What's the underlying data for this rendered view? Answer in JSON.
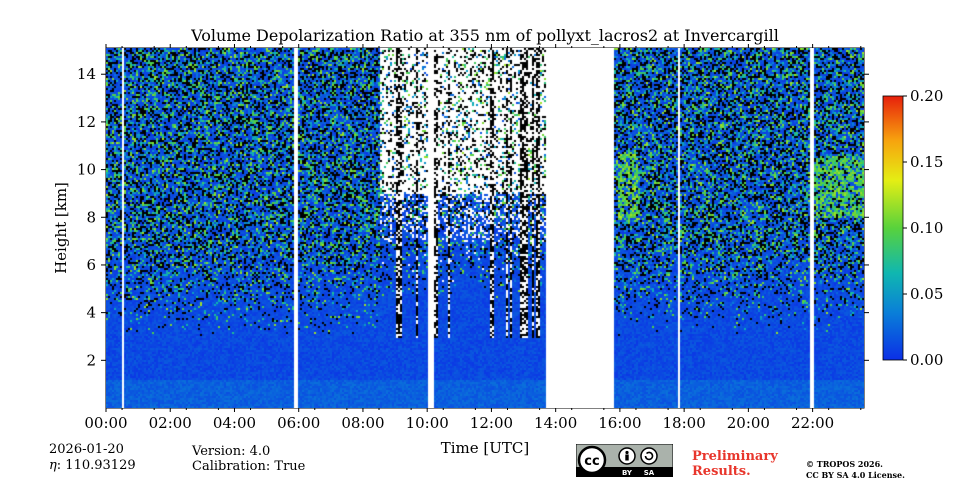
{
  "chart_data": {
    "type": "heatmap",
    "title": "Volume Depolarization Ratio at 355 nm of pollyxt_lacros2 at Invercargill",
    "xlabel": "Time [UTC]",
    "ylabel": "Height [km]",
    "xlim_hours": [
      0,
      23.6
    ],
    "ylim_km": [
      0,
      15.1
    ],
    "x_ticks": [
      {
        "hour": 0,
        "label": "00:00"
      },
      {
        "hour": 2,
        "label": "02:00"
      },
      {
        "hour": 4,
        "label": "04:00"
      },
      {
        "hour": 6,
        "label": "06:00"
      },
      {
        "hour": 8,
        "label": "08:00"
      },
      {
        "hour": 10,
        "label": "10:00"
      },
      {
        "hour": 12,
        "label": "12:00"
      },
      {
        "hour": 14,
        "label": "14:00"
      },
      {
        "hour": 16,
        "label": "16:00"
      },
      {
        "hour": 18,
        "label": "18:00"
      },
      {
        "hour": 20,
        "label": "20:00"
      },
      {
        "hour": 22,
        "label": "22:00"
      }
    ],
    "y_ticks": [
      {
        "km": 2,
        "label": "2"
      },
      {
        "km": 4,
        "label": "4"
      },
      {
        "km": 6,
        "label": "6"
      },
      {
        "km": 8,
        "label": "8"
      },
      {
        "km": 10,
        "label": "10"
      },
      {
        "km": 12,
        "label": "12"
      },
      {
        "km": 14,
        "label": "14"
      }
    ],
    "colorbar": {
      "min": 0.0,
      "max": 0.2,
      "ticks": [
        {
          "value": 0.0,
          "label": "0.00"
        },
        {
          "value": 0.05,
          "label": "0.05"
        },
        {
          "value": 0.1,
          "label": "0.10"
        },
        {
          "value": 0.15,
          "label": "0.15"
        },
        {
          "value": 0.2,
          "label": "0.20"
        }
      ]
    },
    "data_gaps_hours": [
      [
        0.45,
        0.5
      ],
      [
        5.85,
        5.92
      ],
      [
        10.0,
        10.15
      ],
      [
        13.65,
        15.8
      ],
      [
        17.8,
        17.85
      ],
      [
        21.9,
        22.0
      ]
    ],
    "signal_top_km": [
      {
        "from": 0.0,
        "to": 8.5,
        "km": 15.1
      },
      {
        "from": 8.5,
        "to": 13.65,
        "km": 15.1,
        "note": "mostly noise above 7 km"
      },
      {
        "from": 15.8,
        "to": 23.6,
        "km": 15.1
      }
    ],
    "features": [
      {
        "name": "cloud layer",
        "from_hour": 15.9,
        "to_hour": 16.6,
        "base_km": 7.9,
        "top_km": 10.8,
        "ratio": 0.12
      },
      {
        "name": "cloud layer",
        "from_hour": 22.0,
        "to_hour": 23.6,
        "base_km": 8.0,
        "top_km": 10.5,
        "ratio": 0.11
      },
      {
        "name": "boundary layer",
        "from_hour": 0.0,
        "to_hour": 23.6,
        "base_km": 0.0,
        "top_km": 3.0,
        "ratio": 0.01
      }
    ]
  },
  "meta": {
    "date": "2026-01-20",
    "eta_label": "η",
    "eta_value": ": 110.93129",
    "version": "Version: 4.0",
    "calibration": "Calibration: True",
    "preliminary_line1": "Preliminary",
    "preliminary_line2": "Results.",
    "copyright_line1": "© TROPOS 2026.",
    "copyright_line2": "CC BY SA 4.0 License.",
    "cc_text": "cc",
    "by_text": "BY",
    "sa_text": "SA"
  },
  "colors": {
    "low": "#0b3fe0",
    "high": "#e8200c",
    "preliminary": "#e8362c"
  }
}
